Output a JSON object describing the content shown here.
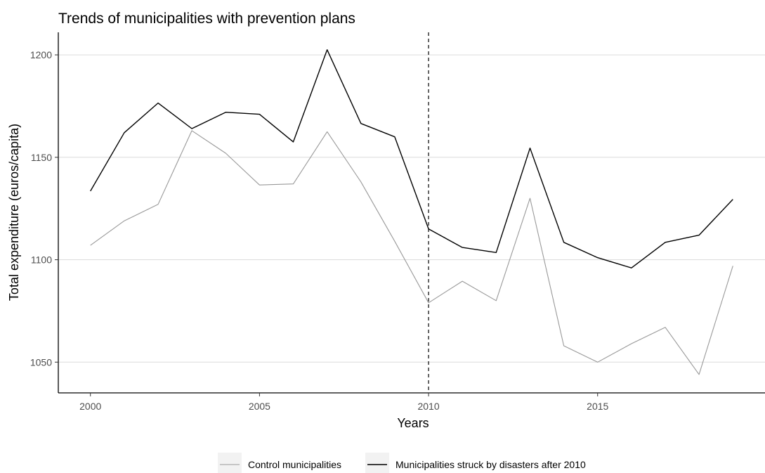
{
  "chart_data": {
    "type": "line",
    "title": "Trends of municipalities with prevention plans",
    "xlabel": "Years",
    "ylabel": "Total expenditure (euros/capita)",
    "x": [
      2000,
      2001,
      2002,
      2003,
      2004,
      2005,
      2006,
      2007,
      2008,
      2009,
      2010,
      2011,
      2012,
      2013,
      2014,
      2015,
      2016,
      2017,
      2018,
      2019
    ],
    "x_ticks": [
      2000,
      2005,
      2010,
      2015
    ],
    "y_ticks": [
      1050,
      1100,
      1150,
      1200
    ],
    "xlim": [
      1999.05,
      2019.95
    ],
    "ylim": [
      1035,
      1211
    ],
    "grid": "horizontal major only",
    "vline": {
      "x": 2010,
      "style": "dashed",
      "color": "#000000"
    },
    "legend": {
      "position": "bottom"
    },
    "series": [
      {
        "name": "Control municipalities",
        "color": "#999999",
        "values": [
          1107,
          1119,
          1127,
          1163,
          1152,
          1136.5,
          1137,
          1162.5,
          1138,
          1109,
          1079,
          1089.5,
          1080,
          1130,
          1058,
          1050,
          1059,
          1067,
          1044,
          1097
        ]
      },
      {
        "name": "Municipalities struck by disasters after 2010",
        "color": "#000000",
        "values": [
          1133.5,
          1162,
          1176.5,
          1164,
          1172,
          1171,
          1157.5,
          1202.5,
          1166.5,
          1160,
          1115,
          1106,
          1103.5,
          1154.5,
          1108.5,
          1101,
          1096,
          1108.5,
          1112,
          1129.5
        ]
      }
    ]
  }
}
